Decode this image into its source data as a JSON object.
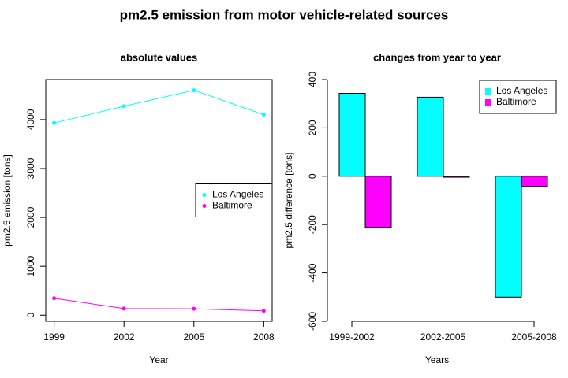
{
  "title": "pm2.5 emission from motor vehicle-related sources",
  "chart_data": [
    {
      "type": "line",
      "title": "absolute values",
      "xlabel": "Year",
      "ylabel": "pm2.5 emission [tons]",
      "x": [
        1999,
        2002,
        2005,
        2008
      ],
      "series": [
        {
          "name": "Los Angeles",
          "color": "#00ffff",
          "values": [
            3931,
            4274,
            4601,
            4101
          ]
        },
        {
          "name": "Baltimore",
          "color": "#ff00ff",
          "values": [
            346,
            134,
            130,
            88
          ]
        }
      ],
      "xlim": [
        1998.64,
        2008.36
      ],
      "ylim": [
        -125,
        4820
      ],
      "xticks": [
        1999,
        2002,
        2005,
        2008
      ],
      "yticks": [
        0,
        1000,
        2000,
        3000,
        4000
      ],
      "legend": "right",
      "box": true
    },
    {
      "type": "bar",
      "title": "changes from year to year",
      "xlabel": "Years",
      "ylabel": "pm2.5 difference [tons]",
      "categories": [
        "1999-2002",
        "2002-2005",
        "2005-2008"
      ],
      "series": [
        {
          "name": "Los Angeles",
          "color": "#00ffff",
          "values": [
            343,
            327,
            -500
          ]
        },
        {
          "name": "Baltimore",
          "color": "#ff00ff",
          "values": [
            -212,
            -4,
            -42
          ]
        }
      ],
      "ylim": [
        -600,
        400
      ],
      "yticks": [
        -600,
        -400,
        -200,
        0,
        200,
        400
      ],
      "legend": "topright",
      "box": false
    }
  ]
}
